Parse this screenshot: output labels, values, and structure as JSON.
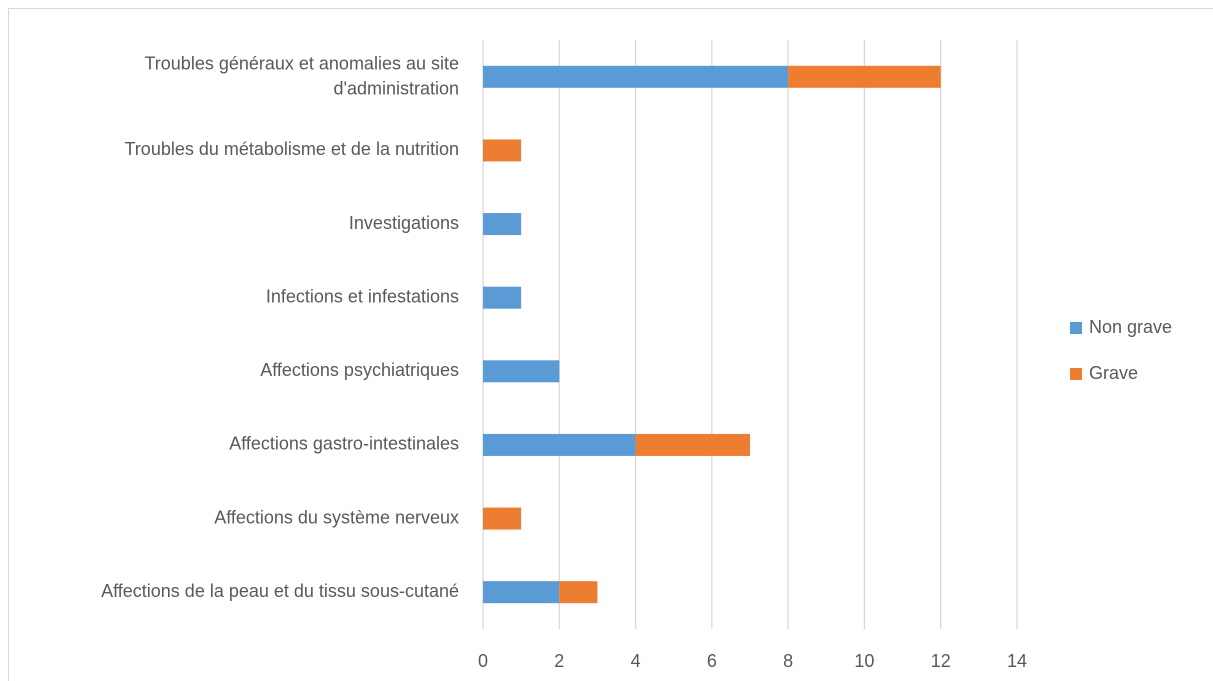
{
  "chart_data": {
    "type": "stacked-bar-horizontal",
    "categories": [
      "Troubles généraux et anomalies au site d'administration",
      "Troubles du métabolisme et de la nutrition",
      "Investigations",
      "Infections et infestations",
      "Affections psychiatriques",
      "Affections gastro-intestinales",
      "Affections du système nerveux",
      "Affections de la peau et du tissu sous-cutané"
    ],
    "series": [
      {
        "name": "Non grave",
        "color": "#5b9bd5",
        "values": [
          8,
          0,
          1,
          1,
          2,
          4,
          0,
          2
        ]
      },
      {
        "name": "Grave",
        "color": "#ed7d31",
        "values": [
          4,
          1,
          0,
          0,
          0,
          3,
          1,
          1
        ]
      }
    ],
    "xlim": [
      0,
      14
    ],
    "xticks": [
      0,
      2,
      4,
      6,
      8,
      10,
      12,
      14
    ],
    "grid": true,
    "legend": "right"
  }
}
